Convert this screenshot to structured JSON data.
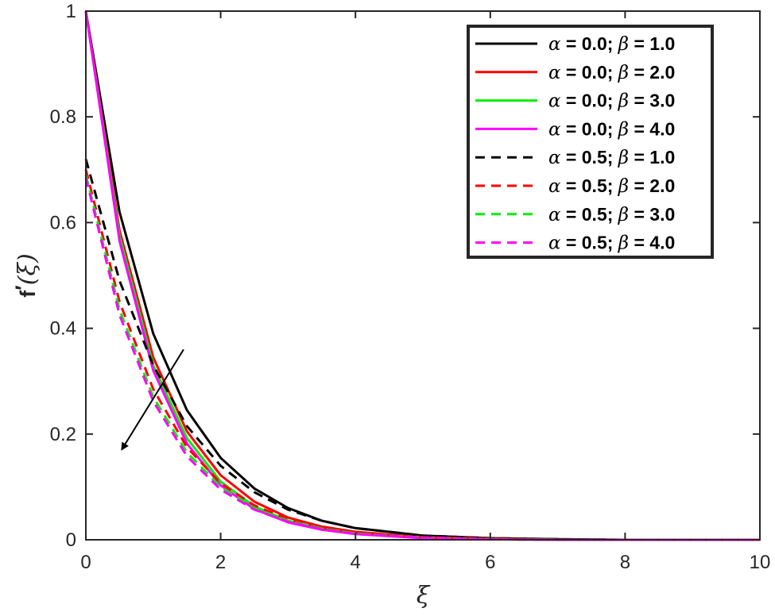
{
  "chart_data": {
    "type": "line",
    "xlim": [
      0,
      10
    ],
    "ylim": [
      0,
      1
    ],
    "x_ticks": [
      "0",
      "2",
      "4",
      "6",
      "8",
      "10"
    ],
    "y_ticks": [
      "0",
      "0.2",
      "0.4",
      "0.6",
      "0.8",
      "1"
    ],
    "xlabel": "ξ",
    "ylabel_main": "f",
    "ylabel_prime": "′",
    "ylabel_arg": "(ξ)",
    "grid": false,
    "legend_position": "top-right",
    "series": [
      {
        "name": "α = 0.0; β = 1.0",
        "alpha_part": "α",
        "text_a": " = 0.0; ",
        "beta_part": "β",
        "text_b": " = 1.0",
        "color": "#000000",
        "dash": "solid",
        "x": [
          0,
          0.5,
          1,
          1.5,
          2,
          2.5,
          3,
          3.5,
          4,
          5,
          6,
          7,
          8,
          10
        ],
        "y": [
          1.0,
          0.62,
          0.39,
          0.245,
          0.155,
          0.097,
          0.06,
          0.036,
          0.022,
          0.008,
          0.003,
          0.001,
          0.0,
          0.0
        ]
      },
      {
        "name": "α = 0.0; β = 2.0",
        "alpha_part": "α",
        "text_a": " = 0.0; ",
        "beta_part": "β",
        "text_b": " = 2.0",
        "color": "#ff0000",
        "dash": "solid",
        "x": [
          0,
          0.5,
          1,
          1.5,
          2,
          2.5,
          3,
          3.5,
          4,
          5,
          6,
          7,
          8,
          10
        ],
        "y": [
          1.0,
          0.585,
          0.345,
          0.205,
          0.122,
          0.072,
          0.042,
          0.025,
          0.015,
          0.005,
          0.002,
          0.0,
          0.0,
          0.0
        ]
      },
      {
        "name": "α = 0.0; β = 3.0",
        "alpha_part": "α",
        "text_a": " = 0.0; ",
        "beta_part": "β",
        "text_b": " = 3.0",
        "color": "#00ee00",
        "dash": "solid",
        "x": [
          0,
          0.5,
          1,
          1.5,
          2,
          2.5,
          3,
          3.5,
          4,
          5,
          6,
          7,
          8,
          10
        ],
        "y": [
          1.0,
          0.575,
          0.33,
          0.192,
          0.11,
          0.063,
          0.036,
          0.021,
          0.012,
          0.004,
          0.001,
          0.0,
          0.0,
          0.0
        ]
      },
      {
        "name": "α = 0.0; β = 4.0",
        "alpha_part": "α",
        "text_a": " = 0.0; ",
        "beta_part": "β",
        "text_b": " = 4.0",
        "color": "#ff00ff",
        "dash": "solid",
        "x": [
          0,
          0.5,
          1,
          1.5,
          2,
          2.5,
          3,
          3.5,
          4,
          5,
          6,
          7,
          8,
          10
        ],
        "y": [
          1.0,
          0.565,
          0.32,
          0.182,
          0.103,
          0.058,
          0.033,
          0.019,
          0.011,
          0.003,
          0.001,
          0.0,
          0.0,
          0.0
        ]
      },
      {
        "name": "α = 0.5; β = 1.0",
        "alpha_part": "α",
        "text_a": " = 0.5; ",
        "beta_part": "β",
        "text_b": " = 1.0",
        "color": "#000000",
        "dash": "dashed",
        "x": [
          0,
          0.5,
          1,
          1.5,
          2,
          2.5,
          3,
          3.5,
          4,
          5,
          6,
          7,
          8,
          10
        ],
        "y": [
          0.72,
          0.49,
          0.33,
          0.215,
          0.14,
          0.09,
          0.057,
          0.036,
          0.022,
          0.008,
          0.003,
          0.001,
          0.0,
          0.0
        ]
      },
      {
        "name": "α = 0.5; β = 2.0",
        "alpha_part": "α",
        "text_a": " = 0.5; ",
        "beta_part": "β",
        "text_b": " = 2.0",
        "color": "#ff0000",
        "dash": "dashed",
        "x": [
          0,
          0.5,
          1,
          1.5,
          2,
          2.5,
          3,
          3.5,
          4,
          5,
          6,
          7,
          8,
          10
        ],
        "y": [
          0.7,
          0.45,
          0.285,
          0.175,
          0.107,
          0.065,
          0.039,
          0.023,
          0.014,
          0.005,
          0.002,
          0.0,
          0.0,
          0.0
        ]
      },
      {
        "name": "α = 0.5; β = 3.0",
        "alpha_part": "α",
        "text_a": " = 0.5; ",
        "beta_part": "β",
        "text_b": " = 3.0",
        "color": "#00ee00",
        "dash": "dashed",
        "x": [
          0,
          0.5,
          1,
          1.5,
          2,
          2.5,
          3,
          3.5,
          4,
          5,
          6,
          7,
          8,
          10
        ],
        "y": [
          0.69,
          0.435,
          0.27,
          0.165,
          0.1,
          0.06,
          0.036,
          0.021,
          0.012,
          0.004,
          0.001,
          0.0,
          0.0,
          0.0
        ]
      },
      {
        "name": "α = 0.5; β = 4.0",
        "alpha_part": "α",
        "text_a": " = 0.5; ",
        "beta_part": "β",
        "text_b": " = 4.0",
        "color": "#ff00ff",
        "dash": "dashed",
        "x": [
          0,
          0.5,
          1,
          1.5,
          2,
          2.5,
          3,
          3.5,
          4,
          5,
          6,
          7,
          8,
          10
        ],
        "y": [
          0.685,
          0.425,
          0.262,
          0.158,
          0.095,
          0.057,
          0.034,
          0.02,
          0.011,
          0.004,
          0.001,
          0.0,
          0.0,
          0.0
        ]
      }
    ],
    "annotation": {
      "type": "arrow",
      "from": [
        1.45,
        0.36
      ],
      "to": [
        0.53,
        0.17
      ]
    }
  }
}
